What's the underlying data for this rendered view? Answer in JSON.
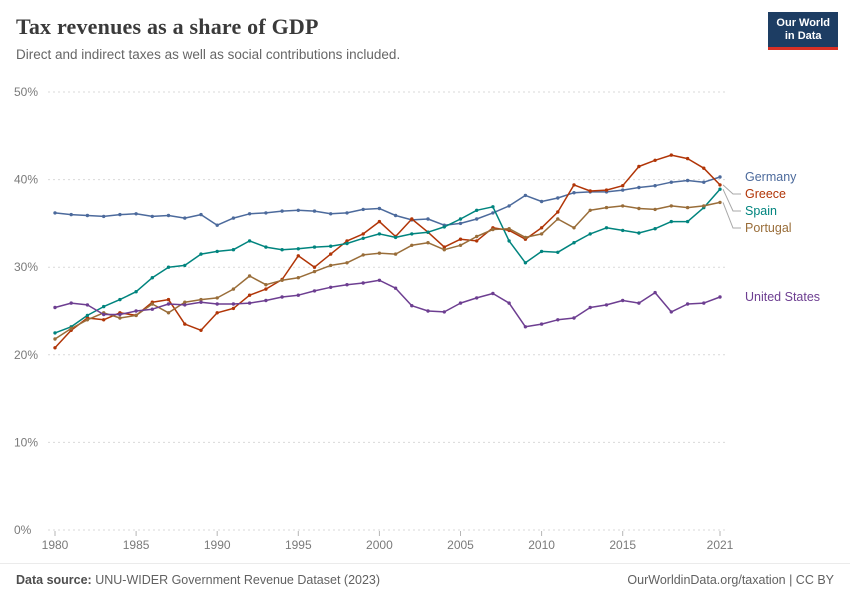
{
  "header": {
    "title": "Tax revenues as a share of GDP",
    "subtitle": "Direct and indirect taxes as well as social contributions included.",
    "logo_line1": "Our World",
    "logo_line2": "in Data"
  },
  "footer": {
    "source_label": "Data source:",
    "source_text": " UNU-WIDER Government Revenue Dataset (2023)",
    "right_text": "OurWorldinData.org/taxation | CC BY"
  },
  "chart_data": {
    "type": "line",
    "title": "Tax revenues as a share of GDP",
    "subtitle": "Direct and indirect taxes as well as social contributions included.",
    "xlabel": "",
    "ylabel": "",
    "ylim": [
      0,
      50
    ],
    "yticks": [
      0,
      10,
      20,
      30,
      40,
      50
    ],
    "ytick_suffix": "%",
    "grid": true,
    "grid_style": "dashed",
    "legend_position": "right-of-line-ends",
    "x": [
      1980,
      1981,
      1982,
      1983,
      1984,
      1985,
      1986,
      1987,
      1988,
      1989,
      1990,
      1991,
      1992,
      1993,
      1994,
      1995,
      1996,
      1997,
      1998,
      1999,
      2000,
      2001,
      2002,
      2003,
      2004,
      2005,
      2006,
      2007,
      2008,
      2009,
      2010,
      2011,
      2012,
      2013,
      2014,
      2015,
      2016,
      2017,
      2018,
      2019,
      2020,
      2021
    ],
    "xticks": [
      1980,
      1985,
      1990,
      1995,
      2000,
      2005,
      2010,
      2015,
      2021
    ],
    "series": [
      {
        "name": "Germany",
        "color": "#4C6A9C",
        "values": [
          36.2,
          36.0,
          35.9,
          35.8,
          36.0,
          36.1,
          35.8,
          35.9,
          35.6,
          36.0,
          34.8,
          35.6,
          36.1,
          36.2,
          36.4,
          36.5,
          36.4,
          36.1,
          36.2,
          36.6,
          36.7,
          35.9,
          35.4,
          35.5,
          34.8,
          35.0,
          35.5,
          36.2,
          37.0,
          38.2,
          37.5,
          37.9,
          38.5,
          38.6,
          38.6,
          38.8,
          39.1,
          39.3,
          39.7,
          39.9,
          39.7,
          40.3
        ]
      },
      {
        "name": "Greece",
        "color": "#B13507",
        "values": [
          20.8,
          22.8,
          24.2,
          24.0,
          24.8,
          24.5,
          26.0,
          26.3,
          23.5,
          22.8,
          24.8,
          25.3,
          26.8,
          27.5,
          28.6,
          31.3,
          30.0,
          31.5,
          33.0,
          33.8,
          35.2,
          33.5,
          35.5,
          34.0,
          32.3,
          33.2,
          33.0,
          34.5,
          34.2,
          33.2,
          34.5,
          36.3,
          39.4,
          38.7,
          38.8,
          39.3,
          41.5,
          42.2,
          42.8,
          42.4,
          41.3,
          39.4
        ]
      },
      {
        "name": "Spain",
        "color": "#00847E",
        "values": [
          22.5,
          23.2,
          24.5,
          25.5,
          26.3,
          27.2,
          28.8,
          30.0,
          30.2,
          31.5,
          31.8,
          32.0,
          33.0,
          32.3,
          32.0,
          32.1,
          32.3,
          32.4,
          32.7,
          33.3,
          33.8,
          33.4,
          33.8,
          34.0,
          34.6,
          35.5,
          36.5,
          36.9,
          33.0,
          30.5,
          31.8,
          31.7,
          32.8,
          33.8,
          34.5,
          34.2,
          33.9,
          34.4,
          35.2,
          35.2,
          36.8,
          38.9
        ]
      },
      {
        "name": "Portugal",
        "color": "#996D39",
        "values": [
          21.8,
          23.0,
          24.0,
          24.8,
          24.2,
          24.5,
          25.8,
          24.8,
          26.0,
          26.3,
          26.5,
          27.5,
          29.0,
          28.0,
          28.5,
          28.8,
          29.5,
          30.2,
          30.5,
          31.4,
          31.6,
          31.5,
          32.5,
          32.8,
          32.0,
          32.5,
          33.5,
          34.3,
          34.4,
          33.4,
          33.8,
          35.5,
          34.5,
          36.5,
          36.8,
          37.0,
          36.7,
          36.6,
          37.0,
          36.8,
          37.0,
          37.4
        ]
      },
      {
        "name": "United States",
        "color": "#6D3E91",
        "values": [
          25.4,
          25.9,
          25.7,
          24.6,
          24.6,
          25.0,
          25.2,
          25.8,
          25.7,
          26.0,
          25.8,
          25.8,
          25.9,
          26.2,
          26.6,
          26.8,
          27.3,
          27.7,
          28.0,
          28.2,
          28.5,
          27.6,
          25.6,
          25.0,
          24.9,
          25.9,
          26.5,
          27.0,
          25.9,
          23.2,
          23.5,
          24.0,
          24.2,
          25.4,
          25.7,
          26.2,
          25.9,
          27.1,
          24.9,
          25.8,
          25.9,
          26.6
        ]
      }
    ]
  }
}
